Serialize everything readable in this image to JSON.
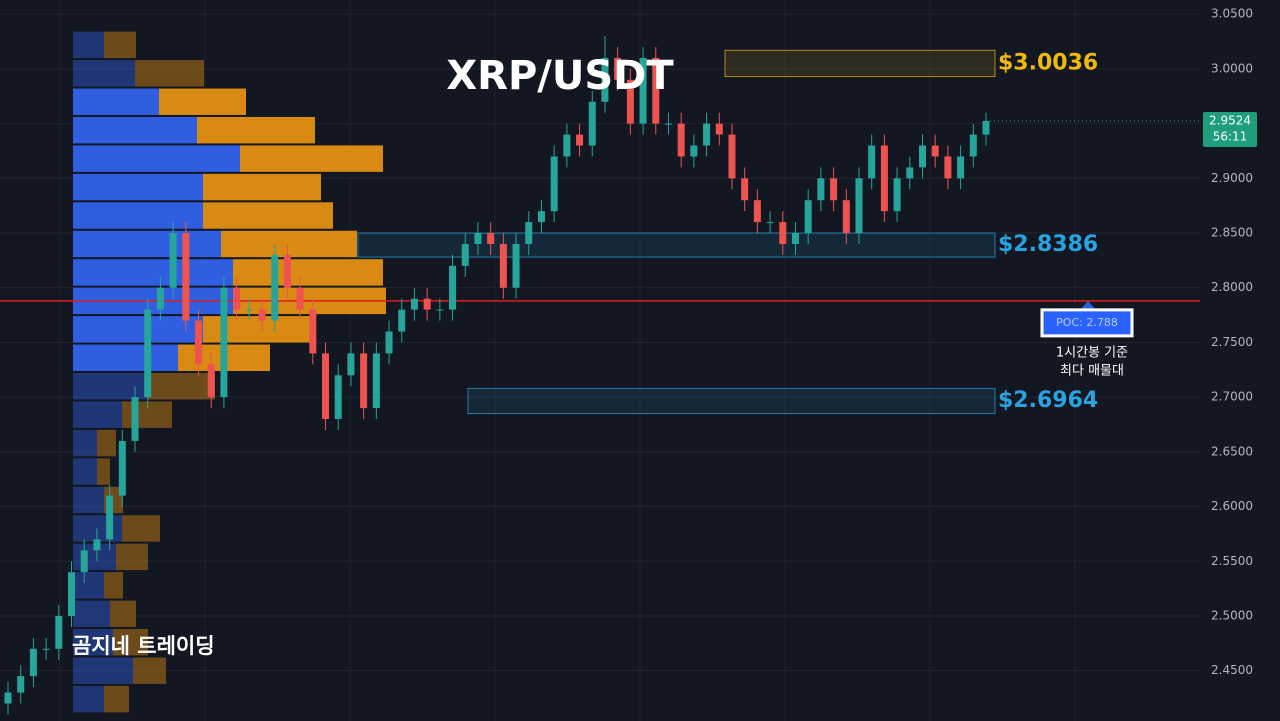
{
  "chart_data": {
    "type": "candlestick",
    "title": "XRP/USDT",
    "watermark": "곰지네 트레이딩",
    "open": [
      2.42,
      2.43,
      2.445,
      2.47,
      2.47,
      2.5,
      2.54,
      2.56,
      2.57,
      2.61,
      2.66,
      2.7,
      2.78,
      2.8,
      2.85,
      2.77,
      2.73,
      2.7,
      2.8,
      2.78,
      2.78,
      2.77,
      2.83,
      2.8,
      2.78,
      2.74,
      2.68,
      2.72,
      2.74,
      2.69,
      2.74,
      2.76,
      2.78,
      2.79,
      2.78,
      2.78,
      2.82,
      2.84,
      2.85,
      2.84,
      2.8,
      2.84,
      2.86,
      2.87,
      2.92,
      2.94,
      2.93,
      2.97,
      3.01,
      2.99,
      2.95,
      3.01,
      2.95,
      2.95,
      2.92,
      2.93,
      2.95,
      2.94,
      2.9,
      2.88,
      2.86,
      2.86,
      2.84,
      2.85,
      2.88,
      2.9,
      2.88,
      2.85,
      2.9,
      2.93,
      2.87,
      2.9,
      2.91,
      2.93,
      2.92,
      2.9,
      2.92,
      2.94
    ],
    "high": [
      2.44,
      2.455,
      2.48,
      2.48,
      2.51,
      2.55,
      2.57,
      2.58,
      2.62,
      2.67,
      2.71,
      2.79,
      2.81,
      2.86,
      2.86,
      2.78,
      2.74,
      2.81,
      2.81,
      2.79,
      2.79,
      2.84,
      2.84,
      2.81,
      2.79,
      2.75,
      2.73,
      2.75,
      2.75,
      2.75,
      2.77,
      2.79,
      2.8,
      2.8,
      2.79,
      2.83,
      2.85,
      2.86,
      2.86,
      2.85,
      2.85,
      2.87,
      2.88,
      2.93,
      2.95,
      2.95,
      2.98,
      3.03,
      3.02,
      3.0,
      3.02,
      3.02,
      2.96,
      2.96,
      2.94,
      2.96,
      2.96,
      2.95,
      2.91,
      2.89,
      2.87,
      2.87,
      2.86,
      2.89,
      2.91,
      2.91,
      2.89,
      2.91,
      2.94,
      2.94,
      2.91,
      2.92,
      2.94,
      2.94,
      2.93,
      2.93,
      2.95,
      2.96
    ],
    "low": [
      2.41,
      2.42,
      2.435,
      2.46,
      2.46,
      2.49,
      2.53,
      2.55,
      2.56,
      2.6,
      2.65,
      2.69,
      2.77,
      2.79,
      2.76,
      2.72,
      2.69,
      2.69,
      2.77,
      2.77,
      2.76,
      2.76,
      2.79,
      2.77,
      2.73,
      2.67,
      2.67,
      2.71,
      2.68,
      2.68,
      2.73,
      2.75,
      2.77,
      2.77,
      2.77,
      2.77,
      2.81,
      2.83,
      2.83,
      2.79,
      2.79,
      2.83,
      2.85,
      2.86,
      2.91,
      2.92,
      2.92,
      2.96,
      2.98,
      2.94,
      2.94,
      2.94,
      2.94,
      2.91,
      2.91,
      2.92,
      2.93,
      2.89,
      2.87,
      2.85,
      2.85,
      2.83,
      2.83,
      2.84,
      2.87,
      2.87,
      2.84,
      2.84,
      2.89,
      2.86,
      2.86,
      2.89,
      2.9,
      2.91,
      2.89,
      2.89,
      2.91,
      2.93
    ],
    "close": [
      2.43,
      2.445,
      2.47,
      2.47,
      2.5,
      2.54,
      2.56,
      2.57,
      2.61,
      2.66,
      2.7,
      2.78,
      2.8,
      2.85,
      2.77,
      2.73,
      2.7,
      2.8,
      2.78,
      2.78,
      2.77,
      2.83,
      2.8,
      2.78,
      2.74,
      2.68,
      2.72,
      2.74,
      2.69,
      2.74,
      2.76,
      2.78,
      2.79,
      2.78,
      2.78,
      2.82,
      2.84,
      2.85,
      2.84,
      2.8,
      2.84,
      2.86,
      2.87,
      2.92,
      2.94,
      2.93,
      2.97,
      3.01,
      2.99,
      2.95,
      3.01,
      2.95,
      2.95,
      2.92,
      2.93,
      2.95,
      2.94,
      2.9,
      2.88,
      2.86,
      2.86,
      2.84,
      2.85,
      2.88,
      2.9,
      2.88,
      2.85,
      2.9,
      2.93,
      2.87,
      2.9,
      2.91,
      2.93,
      2.92,
      2.9,
      2.92,
      2.94,
      2.9524
    ],
    "up_color": "#26a69a",
    "down_color": "#ef5350",
    "ylim": [
      2.404,
      3.063
    ],
    "yticks": [
      {
        "value": 2.45,
        "label": "2.4500"
      },
      {
        "value": 2.5,
        "label": "2.5000"
      },
      {
        "value": 2.55,
        "label": "2.5500"
      },
      {
        "value": 2.6,
        "label": "2.6000"
      },
      {
        "value": 2.65,
        "label": "2.6500"
      },
      {
        "value": 2.7,
        "label": "2.7000"
      },
      {
        "value": 2.75,
        "label": "2.7500"
      },
      {
        "value": 2.8,
        "label": "2.8000"
      },
      {
        "value": 2.85,
        "label": "2.8500"
      },
      {
        "value": 2.9,
        "label": "2.9000"
      },
      {
        "value": 2.95,
        "label": "2.9500"
      },
      {
        "value": 3.0,
        "label": "3.0000"
      },
      {
        "value": 3.05,
        "label": "3.0500"
      }
    ],
    "grid": true,
    "last_price": 2.9524,
    "countdown": "56:11",
    "volume_profile": {
      "bins": [
        3.035,
        3.009,
        2.983,
        2.957,
        2.931,
        2.905,
        2.879,
        2.853,
        2.827,
        2.801,
        2.775,
        2.749,
        2.723,
        2.697,
        2.671,
        2.645,
        2.619,
        2.593,
        2.567,
        2.541,
        2.515,
        2.489,
        2.463,
        2.437,
        2.411
      ],
      "buy": [
        31,
        62,
        86,
        124,
        167,
        130,
        130,
        148,
        160,
        160,
        130,
        105,
        74,
        49,
        24,
        24,
        31,
        49,
        43,
        31,
        37,
        40,
        60,
        31
      ],
      "sell": [
        32,
        69,
        87,
        118,
        143,
        118,
        130,
        136,
        150,
        153,
        110,
        92,
        68,
        50,
        19,
        13,
        19,
        38,
        32,
        19,
        26,
        35,
        33,
        25
      ],
      "buy_color": "#2f5fe0",
      "sell_color": "#d98a12",
      "value_area": [
        2.723,
        2.983
      ]
    },
    "zones": [
      {
        "value": 3.0036,
        "label": "$3.0036",
        "top": 3.017,
        "bottom": 2.993,
        "color": "#f0b90b"
      },
      {
        "value": 2.8386,
        "label": "$2.8386",
        "top": 2.85,
        "bottom": 2.828,
        "color": "#29a3e0"
      },
      {
        "value": 2.6964,
        "label": "$2.6964",
        "top": 2.708,
        "bottom": 2.685,
        "color": "#29a3e0"
      }
    ],
    "poc": {
      "value": 2.788,
      "label": "POC: 2.788",
      "color": "#e01b1b"
    },
    "annotation": [
      "1시간봉 기준",
      "최다 매물대"
    ]
  }
}
